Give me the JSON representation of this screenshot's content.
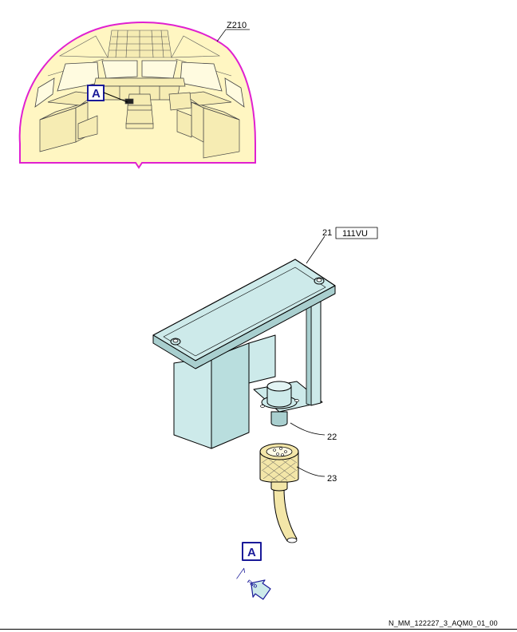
{
  "cockpit_view": {
    "zone_label": "Z210",
    "detail_tag": "A"
  },
  "detail_view": {
    "detail_tag": "A",
    "panel_label": "111VU",
    "callouts": [
      {
        "number": "21"
      },
      {
        "number": "22"
      },
      {
        "number": "23"
      }
    ],
    "fwd_arrow_text": "FWD"
  },
  "figure_reference": "N_MM_122227_3_AQM0_01_00",
  "colors": {
    "cockpit_fill": "#fff6c2",
    "cockpit_outline": "#e020d0",
    "part_fill": "#cdeaea",
    "callout_box": "#1a1a99",
    "cable_fill": "#f3e6a8"
  }
}
